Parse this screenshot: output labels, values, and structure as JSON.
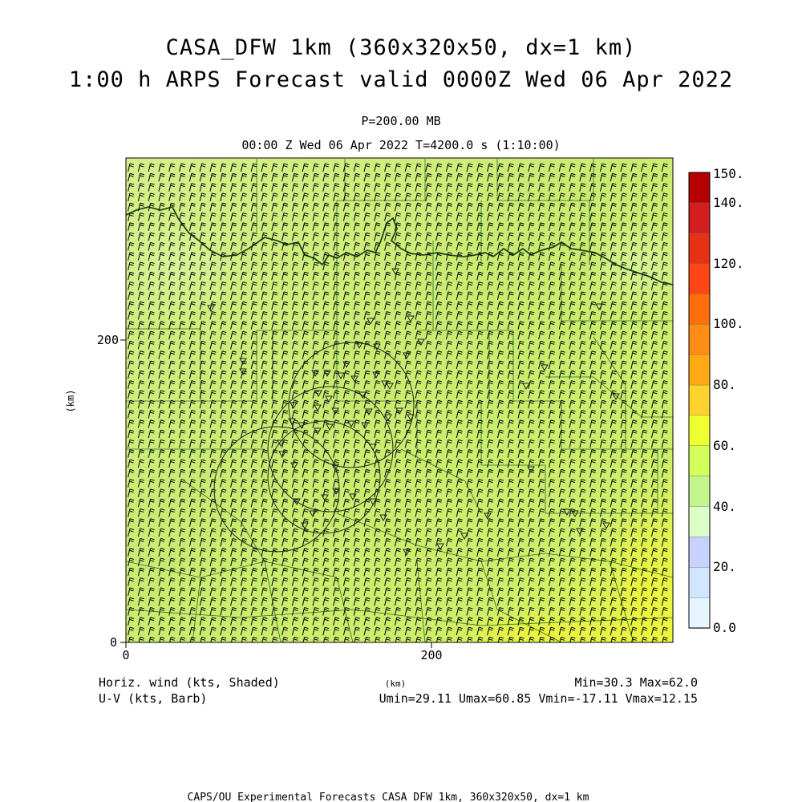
{
  "header": {
    "title_line1": "CASA_DFW 1km (360x320x50, dx=1 km)",
    "title_line2": "1:00 h ARPS Forecast valid 0000Z Wed 06 Apr 2022",
    "level": "P=200.00 MB",
    "valid_time": "00:00 Z Wed 06 Apr 2022   T=4200.0 s (1:10:00)"
  },
  "axes": {
    "x_unit": "(km)",
    "y_unit": "(km)",
    "x_ticks": [
      "0",
      "200"
    ],
    "y_ticks": [
      "0",
      "200"
    ]
  },
  "colorbar": {
    "labels": [
      "150.",
      "140.",
      "120.",
      "100.",
      "80.",
      "60.",
      "40.",
      "20.",
      "0.0"
    ],
    "colors": [
      "#b40000",
      "#d21e1e",
      "#e63214",
      "#ff4614",
      "#ff6e0a",
      "#ff8c14",
      "#ffaa14",
      "#ffd22d",
      "#f0ff32",
      "#d2ff5a",
      "#c3f58c",
      "#dcffc8",
      "#c8d2ff",
      "#d2e6ff",
      "#e6f5ff"
    ]
  },
  "footer": {
    "field1": "Horiz. wind (kts, Shaded)",
    "field2": "U-V (kts, Barb)",
    "x_unit": "(km)",
    "minmax": "Min=30.3 Max=62.0",
    "uv_stats": "Umin=29.11 Umax=60.85 Vmin=-17.11 Vmax=12.15",
    "credit": "CAPS/OU Experimental Forecasts  CASA DFW 1km, 360x320x50, dx=1 km"
  },
  "map": {
    "field_colors": [
      "#d2f082",
      "#c8ec6c",
      "#e8f542"
    ],
    "line_color": "#1a5a1a",
    "range_circle_color": "#222222"
  }
}
